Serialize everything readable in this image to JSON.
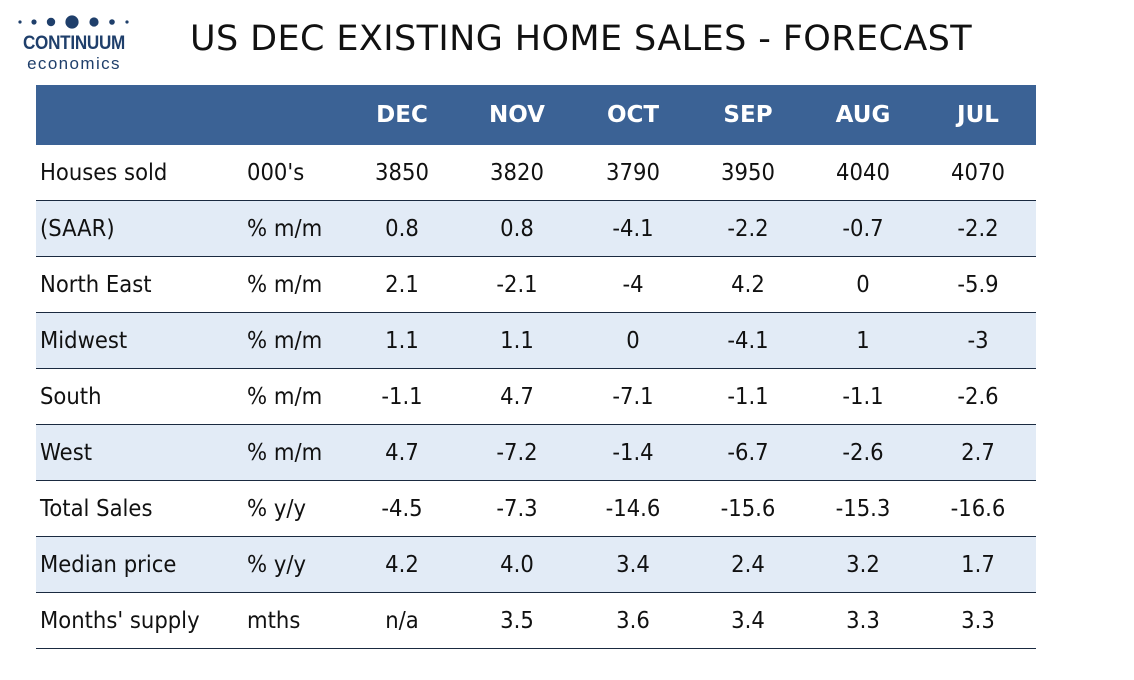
{
  "logo": {
    "brand": "CONTINUUM",
    "sub": "economics",
    "color": "#1f3f6b"
  },
  "title": "US DEC EXISTING HOME SALES - FORECAST",
  "header_color": "#3b6295",
  "alt_row_color": "#e2ebf6",
  "chart_data": {
    "type": "table",
    "columns": [
      "DEC",
      "NOV",
      "OCT",
      "SEP",
      "AUG",
      "JUL"
    ],
    "rows": [
      {
        "label": "Houses sold",
        "unit": "000's",
        "values": [
          "3850",
          "3820",
          "3790",
          "3950",
          "4040",
          "4070"
        ]
      },
      {
        "label": "(SAAR)",
        "unit": "% m/m",
        "values": [
          "0.8",
          "0.8",
          "-4.1",
          "-2.2",
          "-0.7",
          "-2.2"
        ]
      },
      {
        "label": "North East",
        "unit": "% m/m",
        "values": [
          "2.1",
          "-2.1",
          "-4",
          "4.2",
          "0",
          "-5.9"
        ]
      },
      {
        "label": "Midwest",
        "unit": "% m/m",
        "values": [
          "1.1",
          "1.1",
          "0",
          "-4.1",
          "1",
          "-3"
        ]
      },
      {
        "label": "South",
        "unit": "% m/m",
        "values": [
          "-1.1",
          "4.7",
          "-7.1",
          "-1.1",
          "-1.1",
          "-2.6"
        ]
      },
      {
        "label": "West",
        "unit": "% m/m",
        "values": [
          "4.7",
          "-7.2",
          "-1.4",
          "-6.7",
          "-2.6",
          "2.7"
        ]
      },
      {
        "label": "Total Sales",
        "unit": "% y/y",
        "values": [
          "-4.5",
          "-7.3",
          "-14.6",
          "-15.6",
          "-15.3",
          "-16.6"
        ]
      },
      {
        "label": "Median price",
        "unit": "% y/y",
        "values": [
          "4.2",
          "4.0",
          "3.4",
          "2.4",
          "3.2",
          "1.7"
        ]
      },
      {
        "label": "Months' supply",
        "unit": "mths",
        "values": [
          "n/a",
          "3.5",
          "3.6",
          "3.4",
          "3.3",
          "3.3"
        ]
      }
    ]
  }
}
